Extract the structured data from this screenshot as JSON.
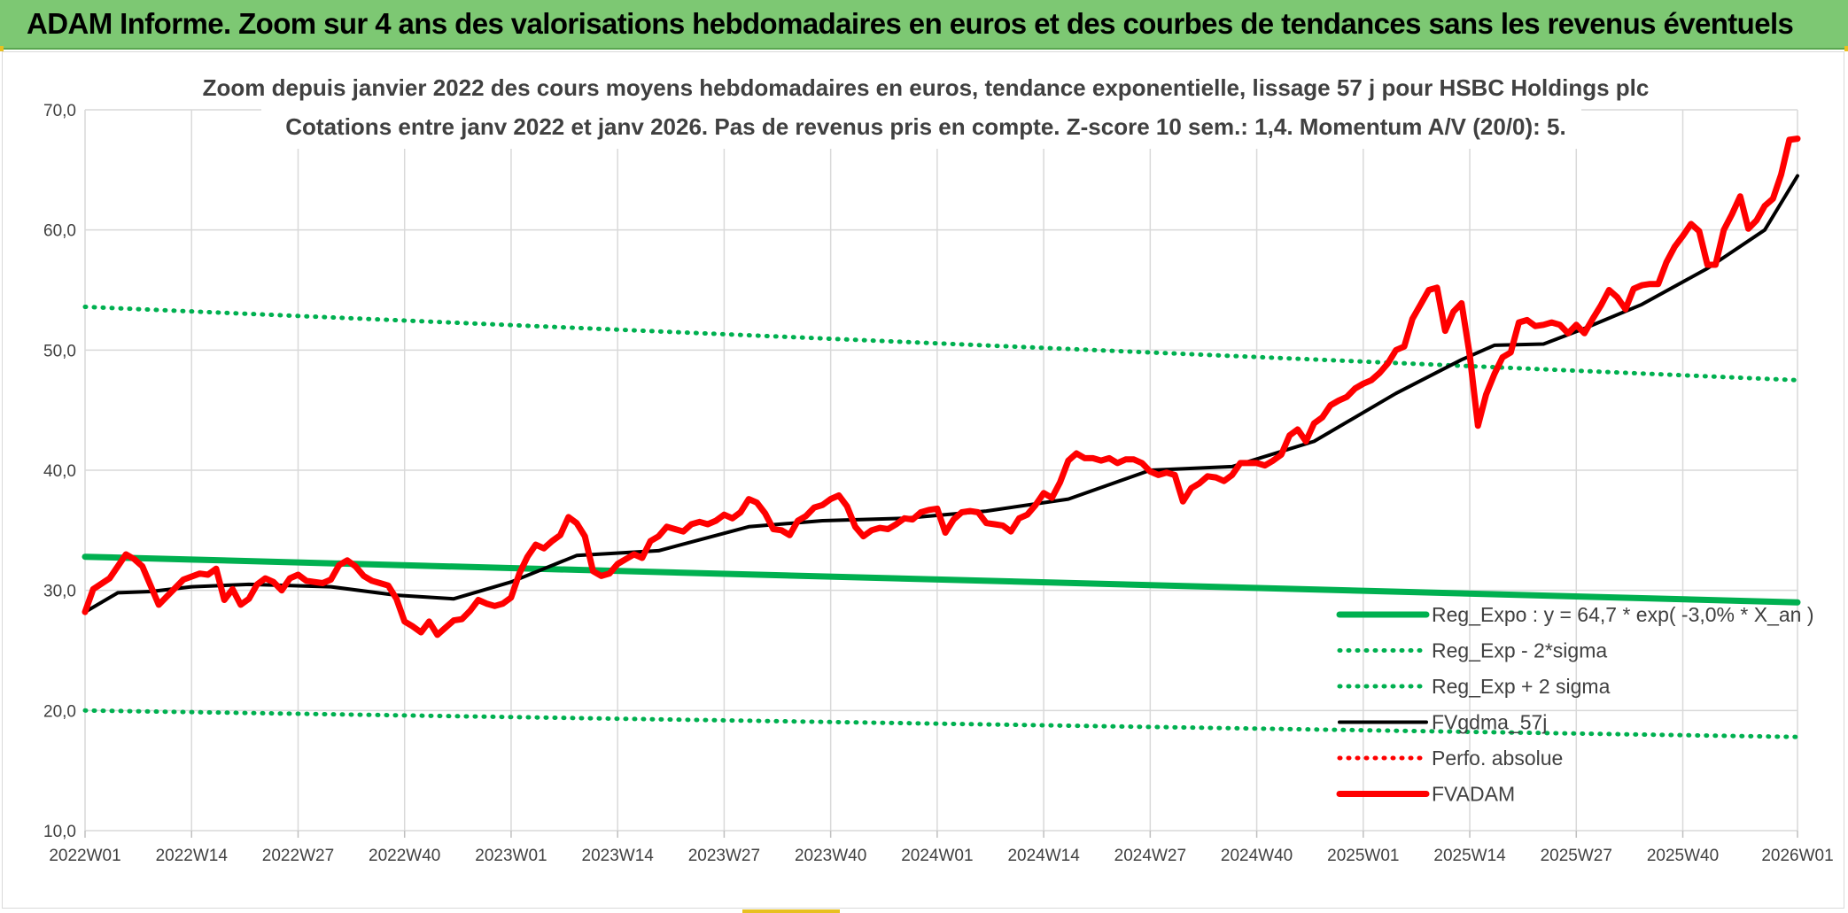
{
  "header": {
    "title": "ADAM Informe. Zoom sur 4 ans des valorisations hebdomadaires en euros et des courbes de tendances sans les revenus éventuels"
  },
  "colors": {
    "header_bg": "#7dc873",
    "trend_green": "#00b050",
    "price_red": "#ff0000",
    "smooth_black": "#000000",
    "grid": "#d9d9d9"
  },
  "chart_data": {
    "type": "line",
    "title": "Zoom depuis janvier 2022 des cours moyens hebdomadaires en euros, tendance exponentielle, lissage 57 j pour HSBC Holdings plc",
    "subtitle": "Cotations entre janv 2022 et janv 2026. Pas de revenus pris en compte. Z-score 10 sem.: 1,4. Momentum A/V (20/0): 5.",
    "xlabel": "",
    "ylabel": "",
    "ylim": [
      10,
      70
    ],
    "y_ticks": [
      "10,0",
      "20,0",
      "30,0",
      "40,0",
      "50,0",
      "60,0",
      "70,0"
    ],
    "x_ticks": [
      "2022W01",
      "2022W14",
      "2022W27",
      "2022W40",
      "2023W01",
      "2023W14",
      "2023W27",
      "2023W40",
      "2024W01",
      "2024W14",
      "2024W27",
      "2024W40",
      "2025W01",
      "2025W14",
      "2025W27",
      "2025W40",
      "2026W01"
    ],
    "x_range_weeks": [
      0,
      209
    ],
    "grid": "vertical and horizontal",
    "legend_placement": "bottom-right",
    "series": [
      {
        "name": "Reg_Expo : y = 64,7 * exp( -3,0% *  X_an )",
        "style": "solid-thick",
        "color": "#00b050",
        "x": [
          0,
          209
        ],
        "y": [
          32.8,
          29.0
        ]
      },
      {
        "name": "Reg_Exp - 2*sigma",
        "style": "dotted",
        "color": "#00b050",
        "x": [
          0,
          209
        ],
        "y": [
          20.0,
          17.8
        ]
      },
      {
        "name": "Reg_Exp + 2 sigma",
        "style": "dotted",
        "color": "#00b050",
        "x": [
          0,
          209
        ],
        "y": [
          53.6,
          47.5
        ]
      },
      {
        "name": "FVgdma_57j",
        "style": "solid",
        "color": "#000000",
        "x": [
          0,
          4,
          8,
          13,
          20,
          30,
          38,
          45,
          52,
          60,
          70,
          81,
          90,
          100,
          110,
          120,
          130,
          140,
          150,
          160,
          168,
          172,
          178,
          183,
          190,
          198,
          205,
          209
        ],
        "y": [
          28.2,
          29.8,
          29.9,
          30.3,
          30.5,
          30.3,
          29.6,
          29.3,
          30.7,
          32.9,
          33.3,
          35.3,
          35.8,
          36.0,
          36.6,
          37.6,
          40.0,
          40.3,
          42.4,
          46.4,
          49.2,
          50.4,
          50.5,
          51.8,
          53.8,
          56.8,
          60.0,
          64.5
        ]
      },
      {
        "name": "Perfo. absolue",
        "style": "dotted",
        "color": "#ff0000",
        "x": [],
        "y": []
      },
      {
        "name": "FVADAM",
        "style": "solid-thick",
        "color": "#ff0000",
        "x": [
          0,
          1,
          3,
          5,
          6,
          7,
          9,
          11,
          12,
          14,
          15,
          16,
          17,
          18,
          19,
          20,
          21,
          22,
          23,
          24,
          25,
          26,
          27,
          28,
          29,
          30,
          31,
          32,
          33,
          34,
          35,
          36,
          37,
          38,
          39,
          40,
          41,
          42,
          43,
          44,
          45,
          46,
          47,
          48,
          49,
          50,
          51,
          52,
          53,
          54,
          55,
          56,
          57,
          58,
          59,
          60,
          61,
          62,
          63,
          64,
          65,
          66,
          67,
          68,
          69,
          70,
          71,
          72,
          73,
          74,
          75,
          76,
          77,
          78,
          79,
          80,
          81,
          82,
          83,
          84,
          85,
          86,
          87,
          88,
          89,
          90,
          91,
          92,
          93,
          94,
          95,
          96,
          97,
          98,
          99,
          100,
          101,
          102,
          103,
          104,
          105,
          106,
          107,
          108,
          109,
          110,
          111,
          112,
          113,
          114,
          115,
          116,
          117,
          118,
          119,
          120,
          121,
          122,
          123,
          124,
          125,
          126,
          127,
          128,
          129,
          130,
          131,
          132,
          133,
          134,
          135,
          136,
          137,
          138,
          139,
          140,
          141,
          142,
          143,
          144,
          145,
          146,
          147,
          148,
          149,
          150,
          151,
          152,
          153,
          154,
          155,
          156,
          157,
          158,
          159,
          160,
          161,
          162,
          163,
          164,
          165,
          166,
          167,
          168,
          169,
          170,
          171,
          172,
          173,
          174,
          175,
          176,
          177,
          178,
          179,
          180,
          181,
          182,
          183,
          184,
          185,
          186,
          187,
          188,
          189,
          190,
          191,
          192,
          193,
          194,
          195,
          196,
          197,
          198,
          199,
          200,
          201,
          202,
          203,
          204,
          205,
          206,
          207,
          208,
          209
        ],
        "y": [
          28.2,
          30.1,
          31.0,
          33.0,
          32.6,
          32.0,
          28.8,
          30.2,
          30.9,
          31.4,
          31.3,
          31.8,
          29.2,
          30.1,
          28.8,
          29.3,
          30.5,
          31.0,
          30.7,
          30.0,
          31.0,
          31.3,
          30.8,
          30.7,
          30.6,
          30.9,
          32.1,
          32.5,
          32.0,
          31.2,
          30.8,
          30.6,
          30.4,
          29.3,
          27.4,
          27.0,
          26.5,
          27.4,
          26.3,
          26.9,
          27.5,
          27.6,
          28.3,
          29.2,
          28.9,
          28.7,
          28.9,
          29.4,
          31.4,
          32.8,
          33.8,
          33.5,
          34.1,
          34.6,
          36.1,
          35.6,
          34.5,
          31.6,
          31.2,
          31.4,
          32.2,
          32.6,
          33.0,
          32.7,
          34.1,
          34.5,
          35.3,
          35.1,
          34.9,
          35.5,
          35.7,
          35.5,
          35.8,
          36.3,
          36.0,
          36.5,
          37.6,
          37.3,
          36.4,
          35.1,
          35.0,
          34.6,
          35.8,
          36.2,
          36.9,
          37.1,
          37.6,
          37.9,
          37.0,
          35.3,
          34.5,
          35.0,
          35.2,
          35.1,
          35.5,
          36.0,
          35.9,
          36.5,
          36.7,
          36.8,
          34.8,
          35.9,
          36.5,
          36.6,
          36.5,
          35.6,
          35.5,
          35.4,
          34.9,
          36.0,
          36.3,
          37.1,
          38.1,
          37.7,
          39.0,
          40.8,
          41.4,
          41.0,
          41.0,
          40.8,
          41.0,
          40.6,
          40.9,
          40.9,
          40.6,
          39.9,
          39.6,
          39.8,
          39.6,
          37.4,
          38.5,
          38.9,
          39.5,
          39.4,
          39.1,
          39.6,
          40.6,
          40.6,
          40.6,
          40.4,
          40.8,
          41.3,
          42.9,
          43.4,
          42.4,
          43.9,
          44.4,
          45.4,
          45.8,
          46.1,
          46.8,
          47.2,
          47.5,
          48.1,
          48.9,
          50.0,
          50.3,
          52.6,
          53.8,
          55.0,
          55.2,
          51.6,
          53.2,
          53.9,
          49.6,
          43.7,
          46.3,
          48.0,
          49.4,
          49.8,
          52.3,
          52.5,
          52.0,
          52.1,
          52.3,
          52.1,
          51.4,
          52.1,
          51.4,
          52.6,
          53.7,
          55.0,
          54.4,
          53.4,
          55.1,
          55.4,
          55.5,
          55.5,
          57.3,
          58.6,
          59.5,
          60.5,
          59.9,
          57.1,
          57.1,
          60.0,
          61.3,
          62.8,
          60.1,
          60.8,
          62.0,
          62.6,
          64.6,
          67.5,
          67.6
        ]
      }
    ]
  }
}
